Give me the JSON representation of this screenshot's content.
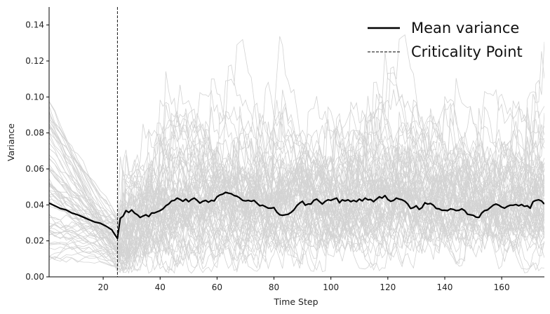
{
  "chart_data": {
    "type": "line",
    "xlabel": "Time Step",
    "ylabel": "Variance",
    "xlim": [
      1,
      175
    ],
    "ylim": [
      0,
      0.15
    ],
    "x_ticks": [
      20,
      40,
      60,
      80,
      100,
      120,
      140,
      160
    ],
    "y_ticks": [
      0.0,
      0.02,
      0.04,
      0.06,
      0.08,
      0.1,
      0.12,
      0.14
    ],
    "x_tick_labels": [
      "20",
      "40",
      "60",
      "80",
      "100",
      "120",
      "140",
      "160"
    ],
    "y_tick_labels": [
      "0.00",
      "0.02",
      "0.04",
      "0.06",
      "0.08",
      "0.10",
      "0.12",
      "0.14"
    ],
    "grid": false,
    "legend_position": "top-right",
    "criticality_point": 25,
    "legend": [
      {
        "label": "Mean variance",
        "style": "solid",
        "color": "#000000"
      },
      {
        "label": "Criticality Point",
        "style": "dashed",
        "color": "#000000"
      }
    ],
    "background_series_color": "#d3d3d3",
    "mean_series": {
      "name": "Mean variance",
      "color": "#000000",
      "points": [
        [
          1,
          0.041
        ],
        [
          3,
          0.0395
        ],
        [
          5,
          0.038
        ],
        [
          7,
          0.0372
        ],
        [
          9,
          0.0355
        ],
        [
          11,
          0.0345
        ],
        [
          13,
          0.0332
        ],
        [
          15,
          0.0318
        ],
        [
          17,
          0.0305
        ],
        [
          19,
          0.0298
        ],
        [
          21,
          0.0282
        ],
        [
          23,
          0.0262
        ],
        [
          25,
          0.0213
        ],
        [
          26,
          0.0325
        ],
        [
          27,
          0.0338
        ],
        [
          28,
          0.0368
        ],
        [
          29,
          0.0358
        ],
        [
          30,
          0.0372
        ],
        [
          31,
          0.0355
        ],
        [
          32,
          0.0345
        ],
        [
          33,
          0.033
        ],
        [
          34,
          0.0338
        ],
        [
          35,
          0.0345
        ],
        [
          36,
          0.0335
        ],
        [
          37,
          0.0355
        ],
        [
          38,
          0.0355
        ],
        [
          39,
          0.0362
        ],
        [
          40,
          0.0368
        ],
        [
          41,
          0.0378
        ],
        [
          42,
          0.0395
        ],
        [
          43,
          0.0405
        ],
        [
          44,
          0.0422
        ],
        [
          45,
          0.0425
        ],
        [
          46,
          0.0438
        ],
        [
          47,
          0.043
        ],
        [
          48,
          0.042
        ],
        [
          49,
          0.0432
        ],
        [
          50,
          0.0418
        ],
        [
          51,
          0.043
        ],
        [
          52,
          0.0438
        ],
        [
          53,
          0.0425
        ],
        [
          54,
          0.041
        ],
        [
          55,
          0.042
        ],
        [
          56,
          0.0425
        ],
        [
          57,
          0.0415
        ],
        [
          58,
          0.0425
        ],
        [
          59,
          0.0422
        ],
        [
          60,
          0.0445
        ],
        [
          61,
          0.0455
        ],
        [
          62,
          0.046
        ],
        [
          63,
          0.047
        ],
        [
          64,
          0.0465
        ],
        [
          65,
          0.0462
        ],
        [
          66,
          0.0452
        ],
        [
          67,
          0.0448
        ],
        [
          68,
          0.0438
        ],
        [
          69,
          0.0425
        ],
        [
          70,
          0.0422
        ],
        [
          71,
          0.0425
        ],
        [
          72,
          0.042
        ],
        [
          73,
          0.0425
        ],
        [
          74,
          0.041
        ],
        [
          75,
          0.0395
        ],
        [
          76,
          0.0398
        ],
        [
          77,
          0.039
        ],
        [
          78,
          0.0382
        ],
        [
          79,
          0.0382
        ],
        [
          80,
          0.0385
        ],
        [
          81,
          0.036
        ],
        [
          82,
          0.0345
        ],
        [
          83,
          0.0342
        ],
        [
          84,
          0.0345
        ],
        [
          85,
          0.0348
        ],
        [
          86,
          0.0358
        ],
        [
          87,
          0.0372
        ],
        [
          88,
          0.0395
        ],
        [
          89,
          0.041
        ],
        [
          90,
          0.042
        ],
        [
          91,
          0.0398
        ],
        [
          92,
          0.0405
        ],
        [
          93,
          0.0405
        ],
        [
          94,
          0.0425
        ],
        [
          95,
          0.0432
        ],
        [
          96,
          0.0418
        ],
        [
          97,
          0.0405
        ],
        [
          98,
          0.042
        ],
        [
          99,
          0.0428
        ],
        [
          100,
          0.0425
        ],
        [
          101,
          0.0432
        ],
        [
          102,
          0.0438
        ],
        [
          103,
          0.0412
        ],
        [
          104,
          0.0428
        ],
        [
          105,
          0.0422
        ],
        [
          106,
          0.0428
        ],
        [
          107,
          0.0418
        ],
        [
          108,
          0.0425
        ],
        [
          109,
          0.0418
        ],
        [
          110,
          0.0432
        ],
        [
          111,
          0.0422
        ],
        [
          112,
          0.0438
        ],
        [
          113,
          0.0428
        ],
        [
          114,
          0.043
        ],
        [
          115,
          0.0418
        ],
        [
          116,
          0.0432
        ],
        [
          117,
          0.0445
        ],
        [
          118,
          0.0438
        ],
        [
          119,
          0.0452
        ],
        [
          120,
          0.043
        ],
        [
          121,
          0.042
        ],
        [
          122,
          0.0425
        ],
        [
          123,
          0.0438
        ],
        [
          124,
          0.0432
        ],
        [
          125,
          0.0428
        ],
        [
          126,
          0.042
        ],
        [
          127,
          0.0405
        ],
        [
          128,
          0.038
        ],
        [
          129,
          0.0385
        ],
        [
          130,
          0.0395
        ],
        [
          131,
          0.0375
        ],
        [
          132,
          0.0385
        ],
        [
          133,
          0.0412
        ],
        [
          134,
          0.0405
        ],
        [
          135,
          0.0408
        ],
        [
          136,
          0.0398
        ],
        [
          137,
          0.038
        ],
        [
          138,
          0.0378
        ],
        [
          139,
          0.037
        ],
        [
          140,
          0.037
        ],
        [
          141,
          0.0368
        ],
        [
          142,
          0.0378
        ],
        [
          143,
          0.0375
        ],
        [
          144,
          0.0368
        ],
        [
          145,
          0.037
        ],
        [
          146,
          0.0378
        ],
        [
          147,
          0.0368
        ],
        [
          148,
          0.0348
        ],
        [
          149,
          0.0345
        ],
        [
          150,
          0.0342
        ],
        [
          151,
          0.0332
        ],
        [
          152,
          0.033
        ],
        [
          153,
          0.0355
        ],
        [
          154,
          0.0368
        ],
        [
          155,
          0.0372
        ],
        [
          156,
          0.0385
        ],
        [
          157,
          0.0398
        ],
        [
          158,
          0.0405
        ],
        [
          159,
          0.0398
        ],
        [
          160,
          0.0388
        ],
        [
          161,
          0.0382
        ],
        [
          162,
          0.0392
        ],
        [
          163,
          0.0398
        ],
        [
          164,
          0.0398
        ],
        [
          165,
          0.0402
        ],
        [
          166,
          0.0395
        ],
        [
          167,
          0.0402
        ],
        [
          168,
          0.0392
        ],
        [
          169,
          0.0395
        ],
        [
          170,
          0.0382
        ],
        [
          171,
          0.0418
        ],
        [
          172,
          0.0425
        ],
        [
          173,
          0.0428
        ],
        [
          174,
          0.0422
        ],
        [
          175,
          0.0405
        ]
      ]
    }
  }
}
